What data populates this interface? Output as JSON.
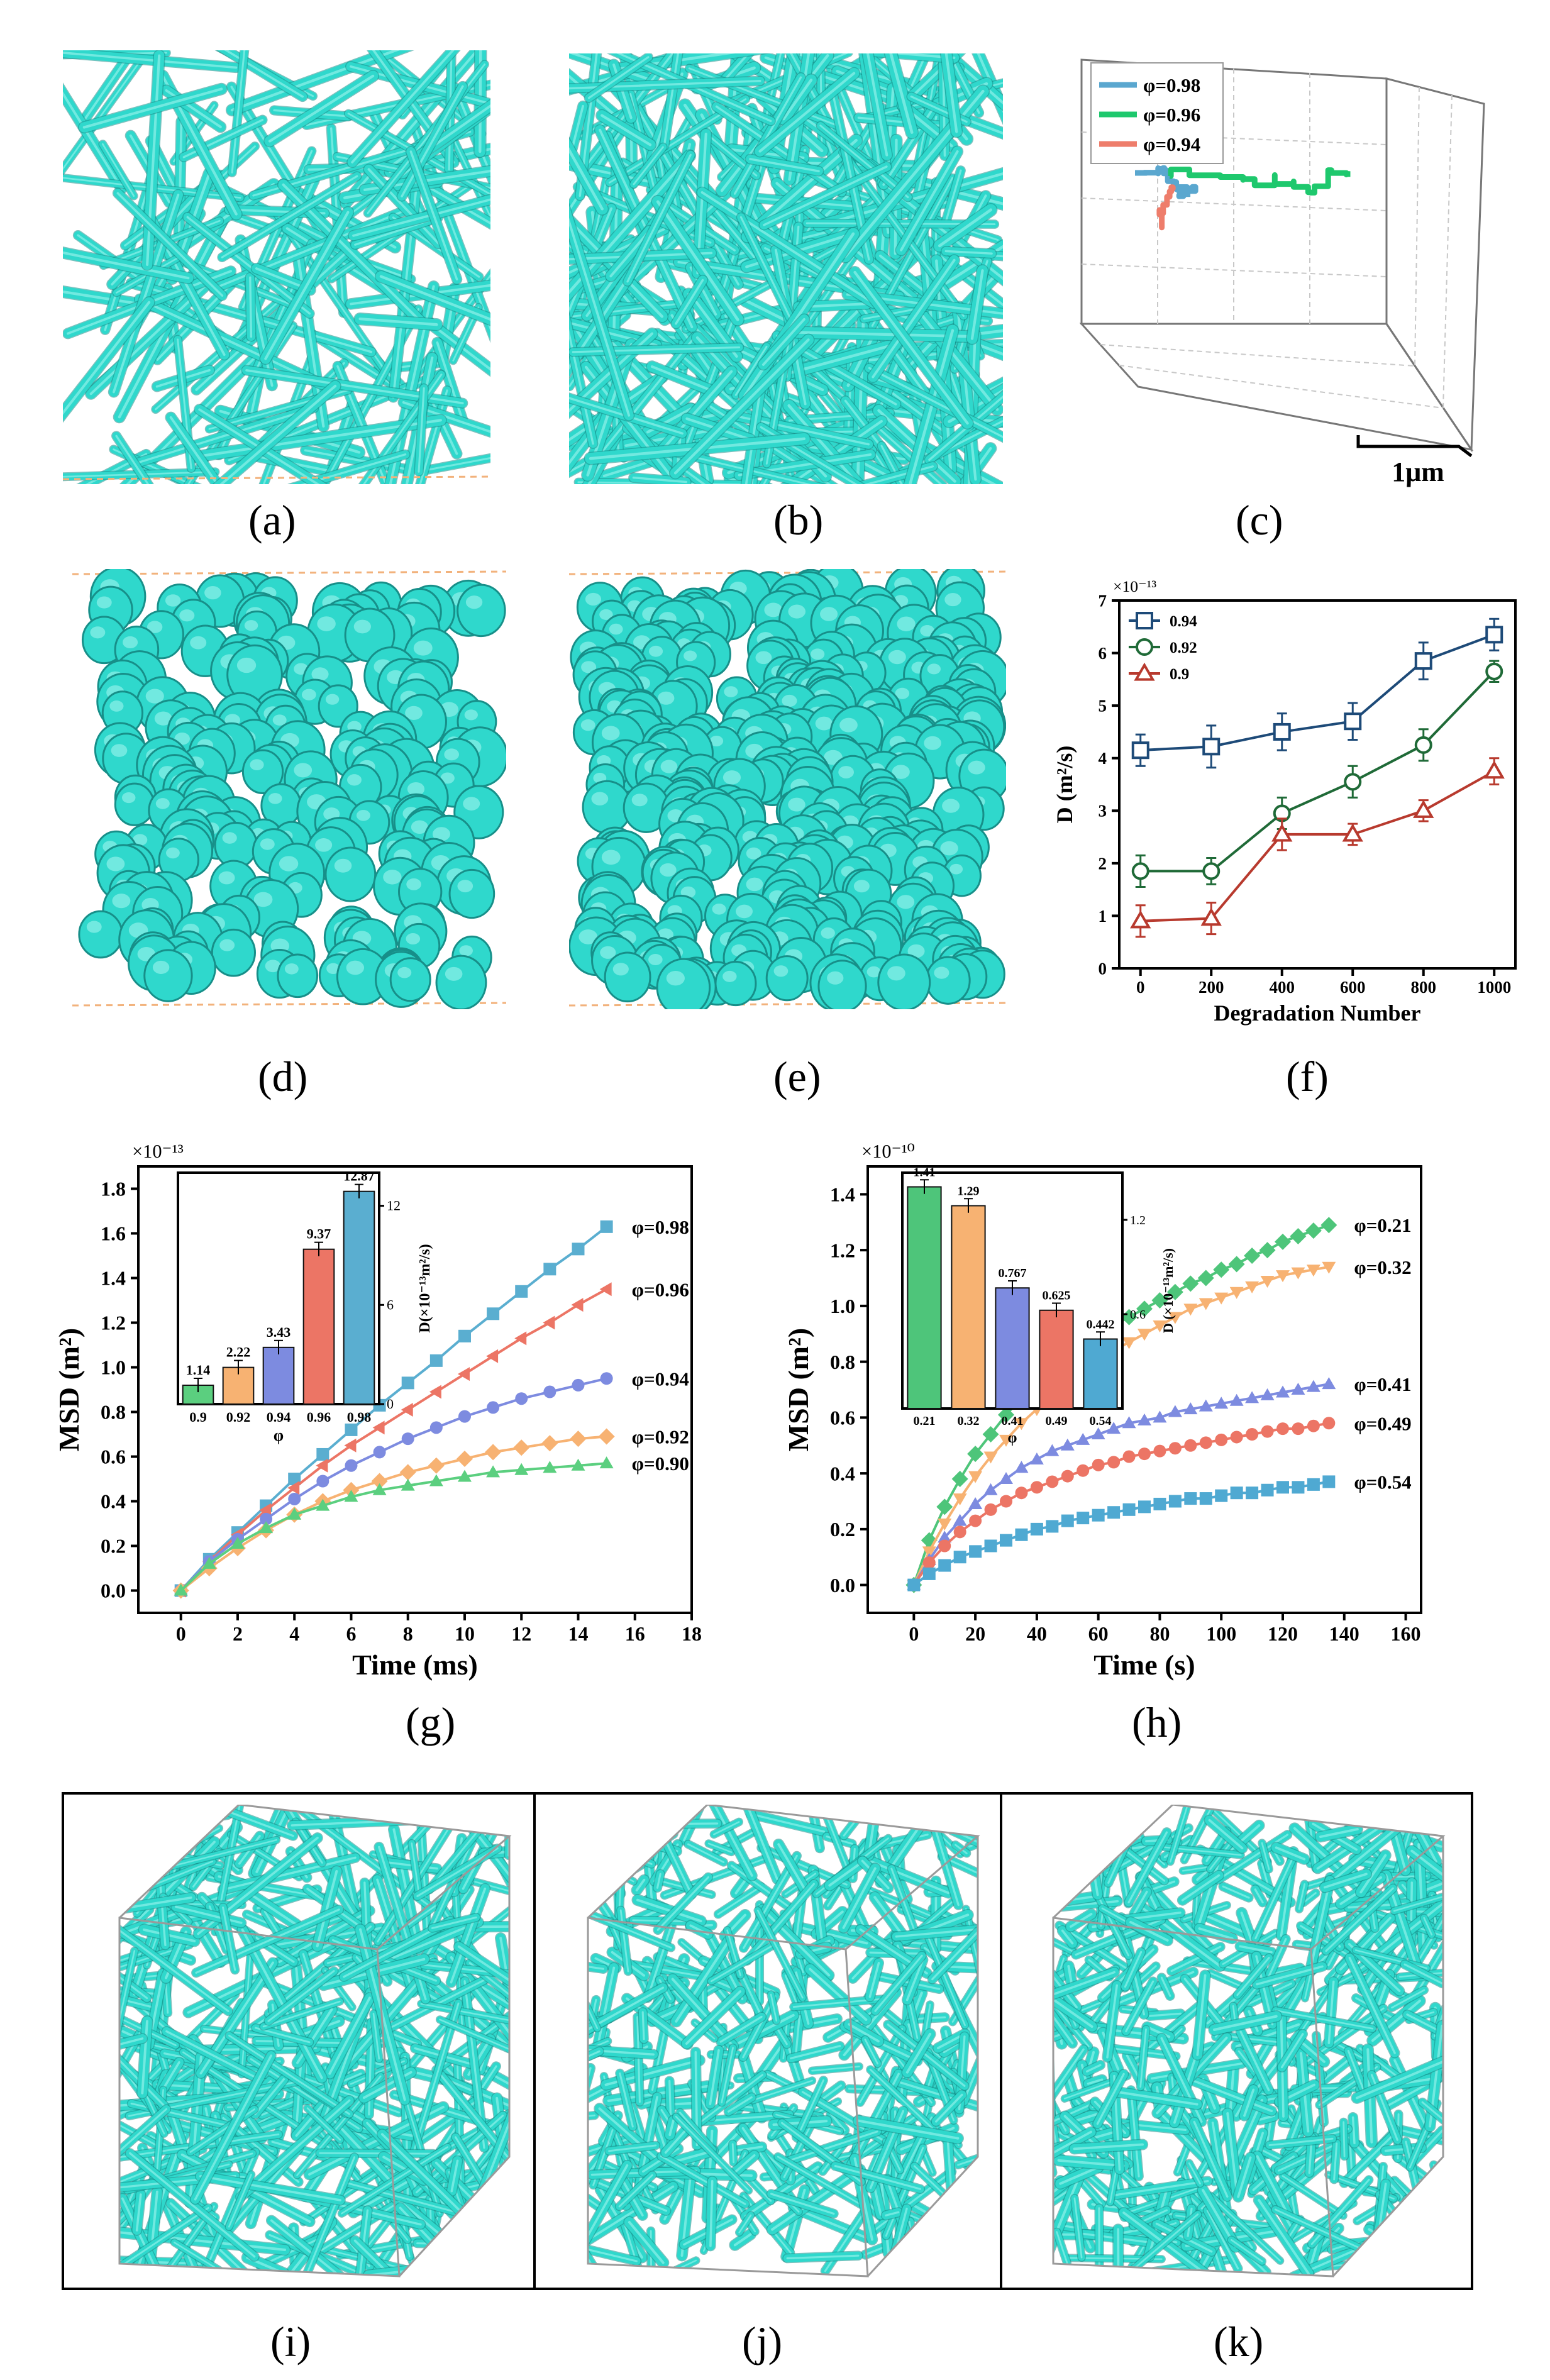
{
  "colors": {
    "fiber": "#2fd8cc",
    "fiber_dark": "#178f89",
    "cube_edge": "#9a9a9a",
    "box_dash": "#f2b27c"
  },
  "panels": {
    "a": "(a)",
    "b": "(b)",
    "c": "(c)",
    "d": "(d)",
    "e": "(e)",
    "f": "(f)",
    "g": "(g)",
    "h": "(h)",
    "i": "(i)",
    "j": "(j)",
    "k": "(k)"
  },
  "panel_c": {
    "scale_label": "1μm",
    "legend": [
      "φ=0.98",
      "φ=0.96",
      "φ=0.94"
    ],
    "colors": [
      "#5aa7cf",
      "#1ec86d",
      "#ee7d6b"
    ]
  },
  "chart_data": [
    {
      "id": "f",
      "type": "line",
      "title": "",
      "xlabel": "Degradation Number",
      "ylabel": "D (m²/s)",
      "y_multiplier": "×10⁻¹³",
      "xlim": [
        -60,
        1060
      ],
      "ylim": [
        0,
        7
      ],
      "xticks": [
        "0",
        "200",
        "400",
        "600",
        "800",
        "1000"
      ],
      "yticks": [
        "0",
        "1",
        "2",
        "3",
        "4",
        "5",
        "6",
        "7"
      ],
      "x": [
        0,
        200,
        400,
        600,
        800,
        1000
      ],
      "legend_position": "top-left",
      "series": [
        {
          "name": "0.94",
          "marker": "square",
          "color": "#1d4a78",
          "values": [
            4.15,
            4.22,
            4.5,
            4.7,
            5.85,
            6.35
          ],
          "errors": [
            0.3,
            0.4,
            0.35,
            0.35,
            0.35,
            0.3
          ]
        },
        {
          "name": "0.92",
          "marker": "circle",
          "color": "#1f6a37",
          "values": [
            1.85,
            1.85,
            2.95,
            3.55,
            4.25,
            5.65
          ],
          "errors": [
            0.3,
            0.25,
            0.3,
            0.3,
            0.3,
            0.2
          ]
        },
        {
          "name": "0.9",
          "marker": "triangle",
          "color": "#b83a2e",
          "values": [
            0.9,
            0.95,
            2.55,
            2.55,
            3.0,
            3.75
          ],
          "errors": [
            0.3,
            0.3,
            0.3,
            0.2,
            0.2,
            0.25
          ]
        }
      ]
    },
    {
      "id": "g",
      "type": "line",
      "title": "",
      "xlabel": "Time (ms)",
      "ylabel": "MSD (m²)",
      "y_multiplier": "×10⁻¹³",
      "xlim": [
        -1.5,
        18
      ],
      "ylim": [
        -0.1,
        1.9
      ],
      "xticks": [
        "0",
        "2",
        "4",
        "6",
        "8",
        "10",
        "12",
        "14",
        "16",
        "18"
      ],
      "yticks": [
        "0.0",
        "0.2",
        "0.4",
        "0.6",
        "0.8",
        "1.0",
        "1.2",
        "1.4",
        "1.6",
        "1.8"
      ],
      "x": [
        0,
        1,
        2,
        3,
        4,
        5,
        6,
        7,
        8,
        9,
        10,
        11,
        12,
        13,
        14,
        15
      ],
      "series": [
        {
          "name": "φ=0.98",
          "marker": "square",
          "color": "#5aaed0",
          "values": [
            0.0,
            0.14,
            0.26,
            0.38,
            0.5,
            0.61,
            0.72,
            0.83,
            0.93,
            1.03,
            1.14,
            1.24,
            1.34,
            1.44,
            1.53,
            1.63
          ]
        },
        {
          "name": "φ=0.96",
          "marker": "triangle-left",
          "color": "#ec7565",
          "values": [
            0.0,
            0.13,
            0.25,
            0.36,
            0.46,
            0.56,
            0.65,
            0.73,
            0.81,
            0.89,
            0.97,
            1.05,
            1.13,
            1.2,
            1.28,
            1.35
          ]
        },
        {
          "name": "φ=0.94",
          "marker": "circle",
          "color": "#7d8be0",
          "values": [
            0.0,
            0.13,
            0.23,
            0.32,
            0.41,
            0.49,
            0.56,
            0.62,
            0.68,
            0.73,
            0.78,
            0.82,
            0.86,
            0.89,
            0.92,
            0.95
          ]
        },
        {
          "name": "φ=0.92",
          "marker": "diamond",
          "color": "#f7b272",
          "values": [
            0.0,
            0.1,
            0.19,
            0.27,
            0.34,
            0.4,
            0.45,
            0.49,
            0.53,
            0.56,
            0.59,
            0.62,
            0.64,
            0.66,
            0.68,
            0.69
          ]
        },
        {
          "name": "φ=0.90",
          "marker": "triangle",
          "color": "#5bcf7f",
          "values": [
            0.0,
            0.12,
            0.21,
            0.28,
            0.34,
            0.38,
            0.42,
            0.45,
            0.47,
            0.49,
            0.51,
            0.53,
            0.54,
            0.55,
            0.56,
            0.57
          ]
        }
      ],
      "inset": {
        "type": "bar",
        "xlabel": "φ",
        "ylabel": "D(×10⁻¹³m²/s)",
        "categories": [
          "0.9",
          "0.92",
          "0.94",
          "0.96",
          "0.98"
        ],
        "values": [
          1.14,
          2.22,
          3.43,
          9.37,
          12.87
        ],
        "labels": [
          "1.14",
          "2.22",
          "3.43",
          "9.37",
          "12.87"
        ],
        "colors": [
          "#5bcf7f",
          "#f7b272",
          "#7d8be0",
          "#ec7565",
          "#5aaed0"
        ],
        "ylim": [
          0,
          14
        ],
        "yticks": [
          "0",
          "6",
          "12"
        ]
      }
    },
    {
      "id": "h",
      "type": "line",
      "title": "",
      "xlabel": "Time (s)",
      "ylabel": "MSD (m²)",
      "y_multiplier": "×10⁻¹⁰",
      "xlim": [
        -15,
        165
      ],
      "ylim": [
        -0.1,
        1.5
      ],
      "xticks": [
        "0",
        "20",
        "40",
        "60",
        "80",
        "100",
        "120",
        "140",
        "160"
      ],
      "yticks": [
        "0.0",
        "0.2",
        "0.4",
        "0.6",
        "0.8",
        "1.0",
        "1.2",
        "1.4"
      ],
      "x": [
        0,
        5,
        10,
        15,
        20,
        25,
        30,
        35,
        40,
        45,
        50,
        55,
        60,
        65,
        70,
        75,
        80,
        85,
        90,
        95,
        100,
        105,
        110,
        115,
        120,
        125,
        130,
        135
      ],
      "series": [
        {
          "name": "φ=0.21",
          "marker": "diamond",
          "color": "#4ec57a",
          "values": [
            0.0,
            0.16,
            0.28,
            0.38,
            0.47,
            0.54,
            0.61,
            0.67,
            0.72,
            0.77,
            0.81,
            0.85,
            0.89,
            0.93,
            0.96,
            0.99,
            1.02,
            1.05,
            1.08,
            1.1,
            1.13,
            1.15,
            1.18,
            1.2,
            1.23,
            1.25,
            1.27,
            1.29
          ]
        },
        {
          "name": "φ=0.32",
          "marker": "triangle-down",
          "color": "#f7b272",
          "values": [
            0.0,
            0.12,
            0.22,
            0.31,
            0.39,
            0.46,
            0.52,
            0.58,
            0.63,
            0.68,
            0.72,
            0.76,
            0.8,
            0.84,
            0.87,
            0.9,
            0.93,
            0.96,
            0.99,
            1.01,
            1.03,
            1.05,
            1.07,
            1.09,
            1.11,
            1.12,
            1.13,
            1.14
          ]
        },
        {
          "name": "φ=0.41",
          "marker": "triangle",
          "color": "#7d8be0",
          "values": [
            0.0,
            0.09,
            0.17,
            0.23,
            0.29,
            0.34,
            0.38,
            0.42,
            0.45,
            0.48,
            0.5,
            0.52,
            0.54,
            0.56,
            0.58,
            0.59,
            0.6,
            0.62,
            0.63,
            0.64,
            0.65,
            0.66,
            0.67,
            0.68,
            0.69,
            0.7,
            0.71,
            0.72
          ]
        },
        {
          "name": "φ=0.49",
          "marker": "circle",
          "color": "#ec7565",
          "values": [
            0.0,
            0.08,
            0.14,
            0.19,
            0.23,
            0.27,
            0.3,
            0.33,
            0.35,
            0.37,
            0.39,
            0.41,
            0.43,
            0.44,
            0.46,
            0.47,
            0.48,
            0.49,
            0.5,
            0.51,
            0.52,
            0.53,
            0.54,
            0.55,
            0.56,
            0.56,
            0.57,
            0.58
          ]
        },
        {
          "name": "φ=0.54",
          "marker": "square",
          "color": "#4fa9d2",
          "values": [
            0.0,
            0.04,
            0.07,
            0.1,
            0.12,
            0.14,
            0.16,
            0.18,
            0.2,
            0.21,
            0.23,
            0.24,
            0.25,
            0.26,
            0.27,
            0.28,
            0.29,
            0.3,
            0.31,
            0.31,
            0.32,
            0.33,
            0.33,
            0.34,
            0.35,
            0.35,
            0.36,
            0.37
          ]
        }
      ],
      "inset": {
        "type": "bar",
        "xlabel": "φ",
        "ylabel": "D (×10⁻¹³m²/s)",
        "categories": [
          "0.21",
          "0.32",
          "0.41",
          "0.49",
          "0.54"
        ],
        "values": [
          1.41,
          1.29,
          0.767,
          0.625,
          0.442
        ],
        "labels": [
          "1.41",
          "1.29",
          "0.767",
          "0.625",
          "0.442"
        ],
        "colors": [
          "#4ec57a",
          "#f7b272",
          "#7d8be0",
          "#ec7565",
          "#4fa9d2"
        ],
        "ylim": [
          0,
          1.5
        ],
        "yticks": [
          "0.6",
          "1.2"
        ]
      }
    }
  ]
}
